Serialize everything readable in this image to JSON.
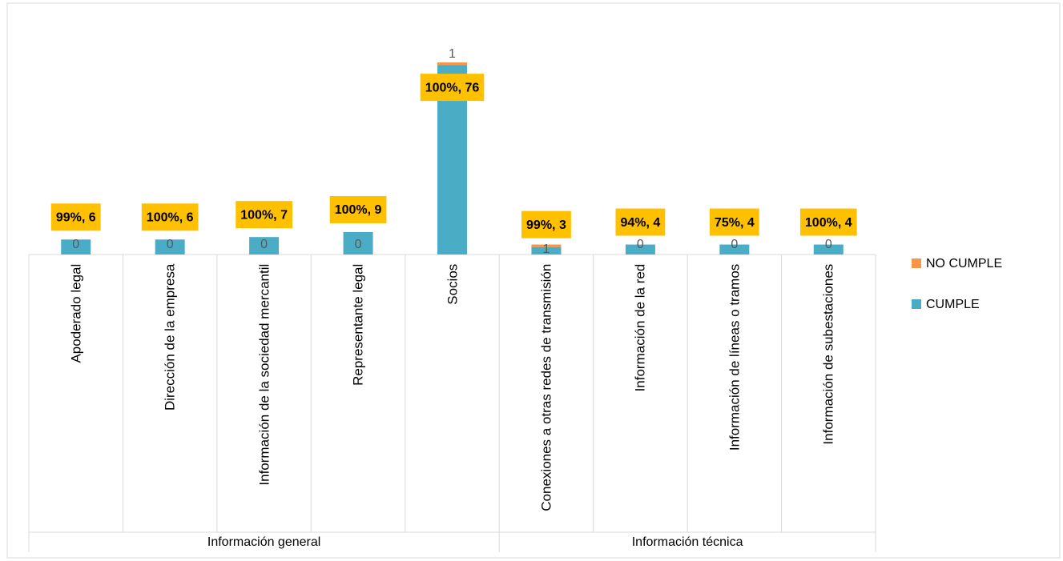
{
  "chart_data": {
    "type": "stacked-bar",
    "groups": [
      {
        "name": "Información general",
        "categories": [
          "Apoderado legal",
          "Dirección de la empresa",
          "Información de la sociedad mercantil",
          "Representante legal",
          "Socios"
        ]
      },
      {
        "name": "Información técnica",
        "categories": [
          "Conexiones a otras redes de transmisión",
          "Información de la red",
          "Información de líneas o tramos",
          "Información de subestaciones"
        ]
      }
    ],
    "series": [
      {
        "name": "CUMPLE",
        "color": "#4bacc6",
        "values": [
          6,
          6,
          7,
          9,
          76,
          3,
          4,
          4,
          4
        ],
        "value_labels": [
          "99%, 6",
          "100%, 6",
          "100%, 7",
          "100%, 9",
          "100%, 76",
          "99%, 3",
          "94%, 4",
          "75%, 4",
          "100%, 4"
        ]
      },
      {
        "name": "NO CUMPLE",
        "color": "#f79646",
        "values": [
          0,
          0,
          0,
          0,
          1,
          1,
          0,
          0,
          0
        ]
      }
    ],
    "legend": "right"
  }
}
